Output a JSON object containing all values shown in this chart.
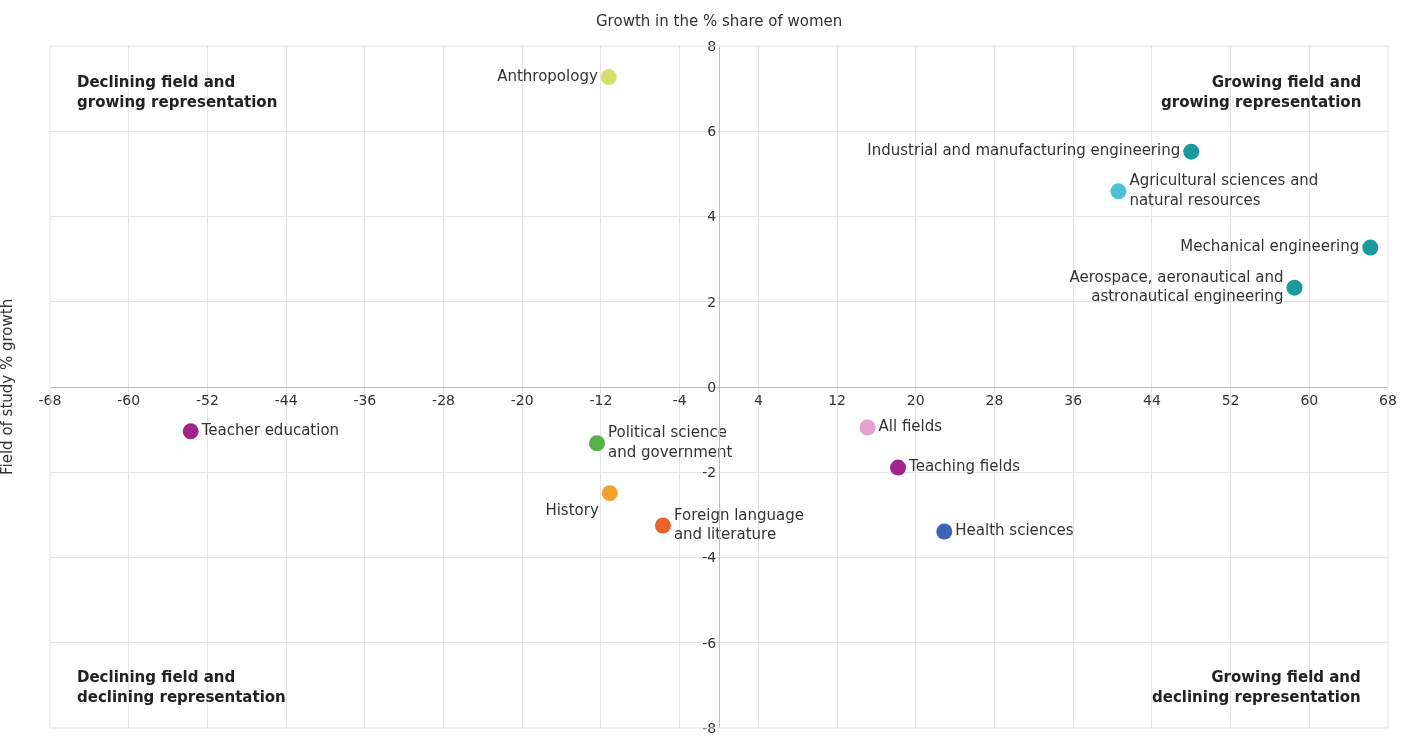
{
  "chart_data": {
    "type": "scatter",
    "xlabel": "Growth in the % share of women",
    "ylabel": "Field of study % growth",
    "xlim": [
      -68,
      68
    ],
    "xticks": [
      -68,
      -60,
      -52,
      -44,
      -36,
      -28,
      -20,
      -12,
      -4,
      4,
      12,
      20,
      28,
      36,
      44,
      52,
      60,
      68
    ],
    "ylim": [
      -8,
      8
    ],
    "yticks": [
      -8,
      -6,
      -4,
      -2,
      0,
      2,
      4,
      6,
      8
    ],
    "grid": true,
    "legend": false,
    "marker": "circle",
    "series": [
      {
        "name": "Anthropology",
        "color": "#d4df6e",
        "x": [
          -11.2
        ],
        "values": [
          7.27
        ]
      },
      {
        "name": "Industrial and manufacturing engineering",
        "color": "#1a9a9e",
        "x": [
          48.0
        ],
        "values": [
          5.52
        ]
      },
      {
        "name": "Agricultural sciences and\nnatural resources",
        "color": "#4cc3d4",
        "x": [
          40.6
        ],
        "values": [
          4.59
        ]
      },
      {
        "name": "Mechanical engineering",
        "color": "#1a9a9e",
        "x": [
          66.2
        ],
        "values": [
          3.27
        ]
      },
      {
        "name": "Aerospace, aeronautical and\nastronautical engineering",
        "color": "#1a9a9e",
        "x": [
          58.5
        ],
        "values": [
          2.33
        ]
      },
      {
        "name": "Teacher education",
        "color": "#a2238e",
        "x": [
          -53.7
        ],
        "values": [
          -1.04
        ]
      },
      {
        "name": "Political science\nand government",
        "color": "#56b04a",
        "x": [
          -12.4
        ],
        "values": [
          -1.32
        ]
      },
      {
        "name": "History",
        "color": "#f2a22e",
        "x": [
          -11.1
        ],
        "values": [
          -2.49
        ]
      },
      {
        "name": "Foreign language\nand literature",
        "color": "#e8622a",
        "x": [
          -5.7
        ],
        "values": [
          -3.25
        ]
      },
      {
        "name": "All fields",
        "color": "#e3a3cf",
        "x": [
          15.1
        ],
        "values": [
          -0.95
        ]
      },
      {
        "name": "Teaching fields",
        "color": "#a2238e",
        "x": [
          18.2
        ],
        "values": [
          -1.89
        ]
      },
      {
        "name": "Health sciences",
        "color": "#3c64b4",
        "x": [
          22.9
        ],
        "values": [
          -3.39
        ]
      }
    ],
    "annotations": [
      "Declining field and\ngrowing representation",
      "Growing field and\ngrowing representation",
      "Declining field and\ndeclining representation",
      "Growing field and\ndeclining representation"
    ]
  }
}
